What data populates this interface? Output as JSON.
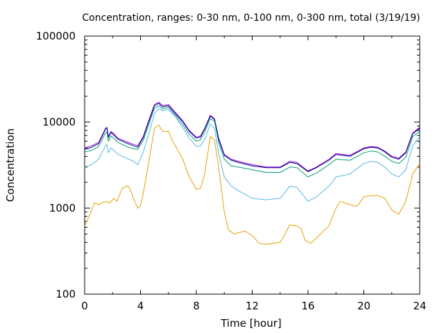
{
  "chart_data": {
    "type": "line",
    "title": "Concentration, ranges: 0-30 nm, 0-100 nm, 0-300 nm, total (3/19/19)",
    "xlabel": "Time [hour]",
    "ylabel": "Concentration",
    "xlim": [
      0,
      24
    ],
    "ylim": [
      100,
      100000
    ],
    "yscale": "log",
    "grid": false,
    "legend": "none",
    "x_ticks": [
      "0",
      "4",
      "8",
      "12",
      "16",
      "20",
      "24"
    ],
    "y_ticks": [
      "100",
      "1000",
      "10000",
      "100000"
    ],
    "x_tick_values": [
      0,
      4,
      8,
      12,
      16,
      20,
      24
    ],
    "y_tick_values": [
      100,
      1000,
      10000,
      100000
    ],
    "series": [
      {
        "color": "#9400d3",
        "points": [
          [
            0,
            5000
          ],
          [
            0.5,
            5300
          ],
          [
            1,
            5800
          ],
          [
            1.5,
            8500
          ],
          [
            1.6,
            8700
          ],
          [
            1.7,
            6800
          ],
          [
            1.9,
            7800
          ],
          [
            2.4,
            6500
          ],
          [
            3,
            5900
          ],
          [
            3.5,
            5500
          ],
          [
            3.8,
            5300
          ],
          [
            4.2,
            6800
          ],
          [
            4.5,
            9500
          ],
          [
            5,
            16000
          ],
          [
            5.3,
            17000
          ],
          [
            5.6,
            15500
          ],
          [
            6,
            16000
          ],
          [
            6.5,
            13000
          ],
          [
            7,
            10500
          ],
          [
            7.5,
            8000
          ],
          [
            8,
            6700
          ],
          [
            8.3,
            6900
          ],
          [
            8.6,
            8500
          ],
          [
            9,
            12000
          ],
          [
            9.3,
            11000
          ],
          [
            9.6,
            6500
          ],
          [
            10,
            4200
          ],
          [
            10.5,
            3700
          ],
          [
            11,
            3500
          ],
          [
            12,
            3200
          ],
          [
            13,
            3000
          ],
          [
            14,
            3000
          ],
          [
            14.7,
            3500
          ],
          [
            15.2,
            3400
          ],
          [
            16,
            2700
          ],
          [
            16.6,
            3000
          ],
          [
            17.5,
            3700
          ],
          [
            18,
            4300
          ],
          [
            19,
            4100
          ],
          [
            20,
            5000
          ],
          [
            20.5,
            5200
          ],
          [
            21,
            5100
          ],
          [
            21.5,
            4600
          ],
          [
            22,
            4000
          ],
          [
            22.5,
            3800
          ],
          [
            23,
            4500
          ],
          [
            23.5,
            7500
          ],
          [
            24,
            8700
          ]
        ]
      },
      {
        "color": "#00008b",
        "points": [
          [
            0,
            4800
          ],
          [
            0.5,
            5100
          ],
          [
            1,
            5600
          ],
          [
            1.5,
            8300
          ],
          [
            1.6,
            8500
          ],
          [
            1.7,
            6600
          ],
          [
            1.9,
            7600
          ],
          [
            2.4,
            6300
          ],
          [
            3,
            5700
          ],
          [
            3.5,
            5300
          ],
          [
            3.8,
            5100
          ],
          [
            4.2,
            6600
          ],
          [
            4.5,
            9200
          ],
          [
            5,
            15500
          ],
          [
            5.3,
            16500
          ],
          [
            5.6,
            15000
          ],
          [
            6,
            15500
          ],
          [
            6.5,
            12500
          ],
          [
            7,
            10200
          ],
          [
            7.5,
            7800
          ],
          [
            8,
            6500
          ],
          [
            8.3,
            6700
          ],
          [
            8.6,
            8300
          ],
          [
            9,
            11700
          ],
          [
            9.3,
            10700
          ],
          [
            9.6,
            6300
          ],
          [
            10,
            4100
          ],
          [
            10.5,
            3600
          ],
          [
            11,
            3400
          ],
          [
            12,
            3100
          ],
          [
            13,
            2950
          ],
          [
            14,
            2950
          ],
          [
            14.7,
            3400
          ],
          [
            15.2,
            3300
          ],
          [
            16,
            2650
          ],
          [
            16.6,
            2950
          ],
          [
            17.5,
            3600
          ],
          [
            18,
            4200
          ],
          [
            19,
            4000
          ],
          [
            20,
            4900
          ],
          [
            20.5,
            5100
          ],
          [
            21,
            5000
          ],
          [
            21.5,
            4500
          ],
          [
            22,
            3900
          ],
          [
            22.5,
            3700
          ],
          [
            23,
            4400
          ],
          [
            23.5,
            7300
          ],
          [
            24,
            8500
          ]
        ]
      },
      {
        "color": "#009e73",
        "points": [
          [
            0,
            4500
          ],
          [
            0.5,
            4700
          ],
          [
            1,
            5200
          ],
          [
            1.5,
            7500
          ],
          [
            1.6,
            7700
          ],
          [
            1.7,
            6000
          ],
          [
            1.9,
            6900
          ],
          [
            2.4,
            5800
          ],
          [
            3,
            5200
          ],
          [
            3.5,
            4900
          ],
          [
            3.8,
            4800
          ],
          [
            4.2,
            6100
          ],
          [
            4.5,
            8500
          ],
          [
            5,
            14500
          ],
          [
            5.3,
            15500
          ],
          [
            5.6,
            14200
          ],
          [
            6,
            14800
          ],
          [
            6.5,
            12000
          ],
          [
            7,
            9500
          ],
          [
            7.5,
            7200
          ],
          [
            8,
            6000
          ],
          [
            8.3,
            6200
          ],
          [
            8.6,
            7700
          ],
          [
            9,
            11000
          ],
          [
            9.3,
            10200
          ],
          [
            9.6,
            5800
          ],
          [
            10,
            3700
          ],
          [
            10.5,
            3100
          ],
          [
            11,
            3000
          ],
          [
            12,
            2800
          ],
          [
            13,
            2600
          ],
          [
            14,
            2600
          ],
          [
            14.7,
            3000
          ],
          [
            15.2,
            2950
          ],
          [
            16,
            2300
          ],
          [
            16.6,
            2550
          ],
          [
            17.5,
            3200
          ],
          [
            18,
            3700
          ],
          [
            19,
            3600
          ],
          [
            20,
            4400
          ],
          [
            20.5,
            4600
          ],
          [
            21,
            4500
          ],
          [
            21.5,
            4000
          ],
          [
            22,
            3500
          ],
          [
            22.5,
            3300
          ],
          [
            23,
            3900
          ],
          [
            23.5,
            6800
          ],
          [
            24,
            7800
          ]
        ]
      },
      {
        "color": "#56b4e9",
        "points": [
          [
            0,
            3000
          ],
          [
            0.5,
            3200
          ],
          [
            1,
            3700
          ],
          [
            1.5,
            5300
          ],
          [
            1.6,
            5500
          ],
          [
            1.7,
            4400
          ],
          [
            1.9,
            5000
          ],
          [
            2.4,
            4200
          ],
          [
            3,
            3800
          ],
          [
            3.5,
            3500
          ],
          [
            3.8,
            3200
          ],
          [
            4.2,
            4500
          ],
          [
            4.5,
            6500
          ],
          [
            5,
            12500
          ],
          [
            5.3,
            14500
          ],
          [
            5.6,
            13500
          ],
          [
            6,
            14000
          ],
          [
            6.5,
            11500
          ],
          [
            7,
            8800
          ],
          [
            7.5,
            6500
          ],
          [
            8,
            5200
          ],
          [
            8.3,
            5300
          ],
          [
            8.6,
            6300
          ],
          [
            9,
            9500
          ],
          [
            9.3,
            8500
          ],
          [
            9.6,
            4300
          ],
          [
            10,
            2300
          ],
          [
            10.5,
            1800
          ],
          [
            11,
            1600
          ],
          [
            12,
            1300
          ],
          [
            13,
            1250
          ],
          [
            14,
            1300
          ],
          [
            14.7,
            1800
          ],
          [
            15.2,
            1750
          ],
          [
            16,
            1200
          ],
          [
            16.6,
            1350
          ],
          [
            17.5,
            1800
          ],
          [
            18,
            2300
          ],
          [
            19,
            2500
          ],
          [
            20,
            3300
          ],
          [
            20.5,
            3500
          ],
          [
            21,
            3400
          ],
          [
            21.5,
            3000
          ],
          [
            22,
            2500
          ],
          [
            22.5,
            2300
          ],
          [
            23,
            2800
          ],
          [
            23.5,
            5300
          ],
          [
            24,
            6800
          ]
        ]
      },
      {
        "color": "#e69f00",
        "points": [
          [
            0,
            620
          ],
          [
            0.3,
            780
          ],
          [
            0.7,
            1150
          ],
          [
            1,
            1100
          ],
          [
            1.5,
            1200
          ],
          [
            1.8,
            1150
          ],
          [
            2.1,
            1300
          ],
          [
            2.3,
            1200
          ],
          [
            2.7,
            1700
          ],
          [
            3,
            1800
          ],
          [
            3.2,
            1750
          ],
          [
            3.5,
            1300
          ],
          [
            3.8,
            1000
          ],
          [
            4,
            1050
          ],
          [
            4.3,
            1800
          ],
          [
            4.6,
            3500
          ],
          [
            5,
            8500
          ],
          [
            5.3,
            9200
          ],
          [
            5.6,
            7800
          ],
          [
            6,
            7800
          ],
          [
            6.3,
            6000
          ],
          [
            7,
            3800
          ],
          [
            7.5,
            2300
          ],
          [
            8,
            1650
          ],
          [
            8.3,
            1700
          ],
          [
            8.6,
            2500
          ],
          [
            9,
            6800
          ],
          [
            9.3,
            6200
          ],
          [
            9.6,
            3000
          ],
          [
            10,
            900
          ],
          [
            10.3,
            560
          ],
          [
            10.7,
            500
          ],
          [
            11,
            520
          ],
          [
            11.5,
            540
          ],
          [
            12,
            480
          ],
          [
            12.5,
            390
          ],
          [
            13,
            380
          ],
          [
            14,
            400
          ],
          [
            14.3,
            480
          ],
          [
            14.7,
            640
          ],
          [
            15.2,
            620
          ],
          [
            15.5,
            580
          ],
          [
            15.8,
            420
          ],
          [
            16.2,
            390
          ],
          [
            16.6,
            450
          ],
          [
            17.5,
            620
          ],
          [
            18,
            1000
          ],
          [
            18.3,
            1200
          ],
          [
            19,
            1100
          ],
          [
            19.5,
            1050
          ],
          [
            20,
            1350
          ],
          [
            20.5,
            1400
          ],
          [
            21,
            1400
          ],
          [
            21.5,
            1300
          ],
          [
            22,
            950
          ],
          [
            22.5,
            850
          ],
          [
            23,
            1200
          ],
          [
            23.5,
            2500
          ],
          [
            24,
            3300
          ]
        ]
      }
    ]
  }
}
